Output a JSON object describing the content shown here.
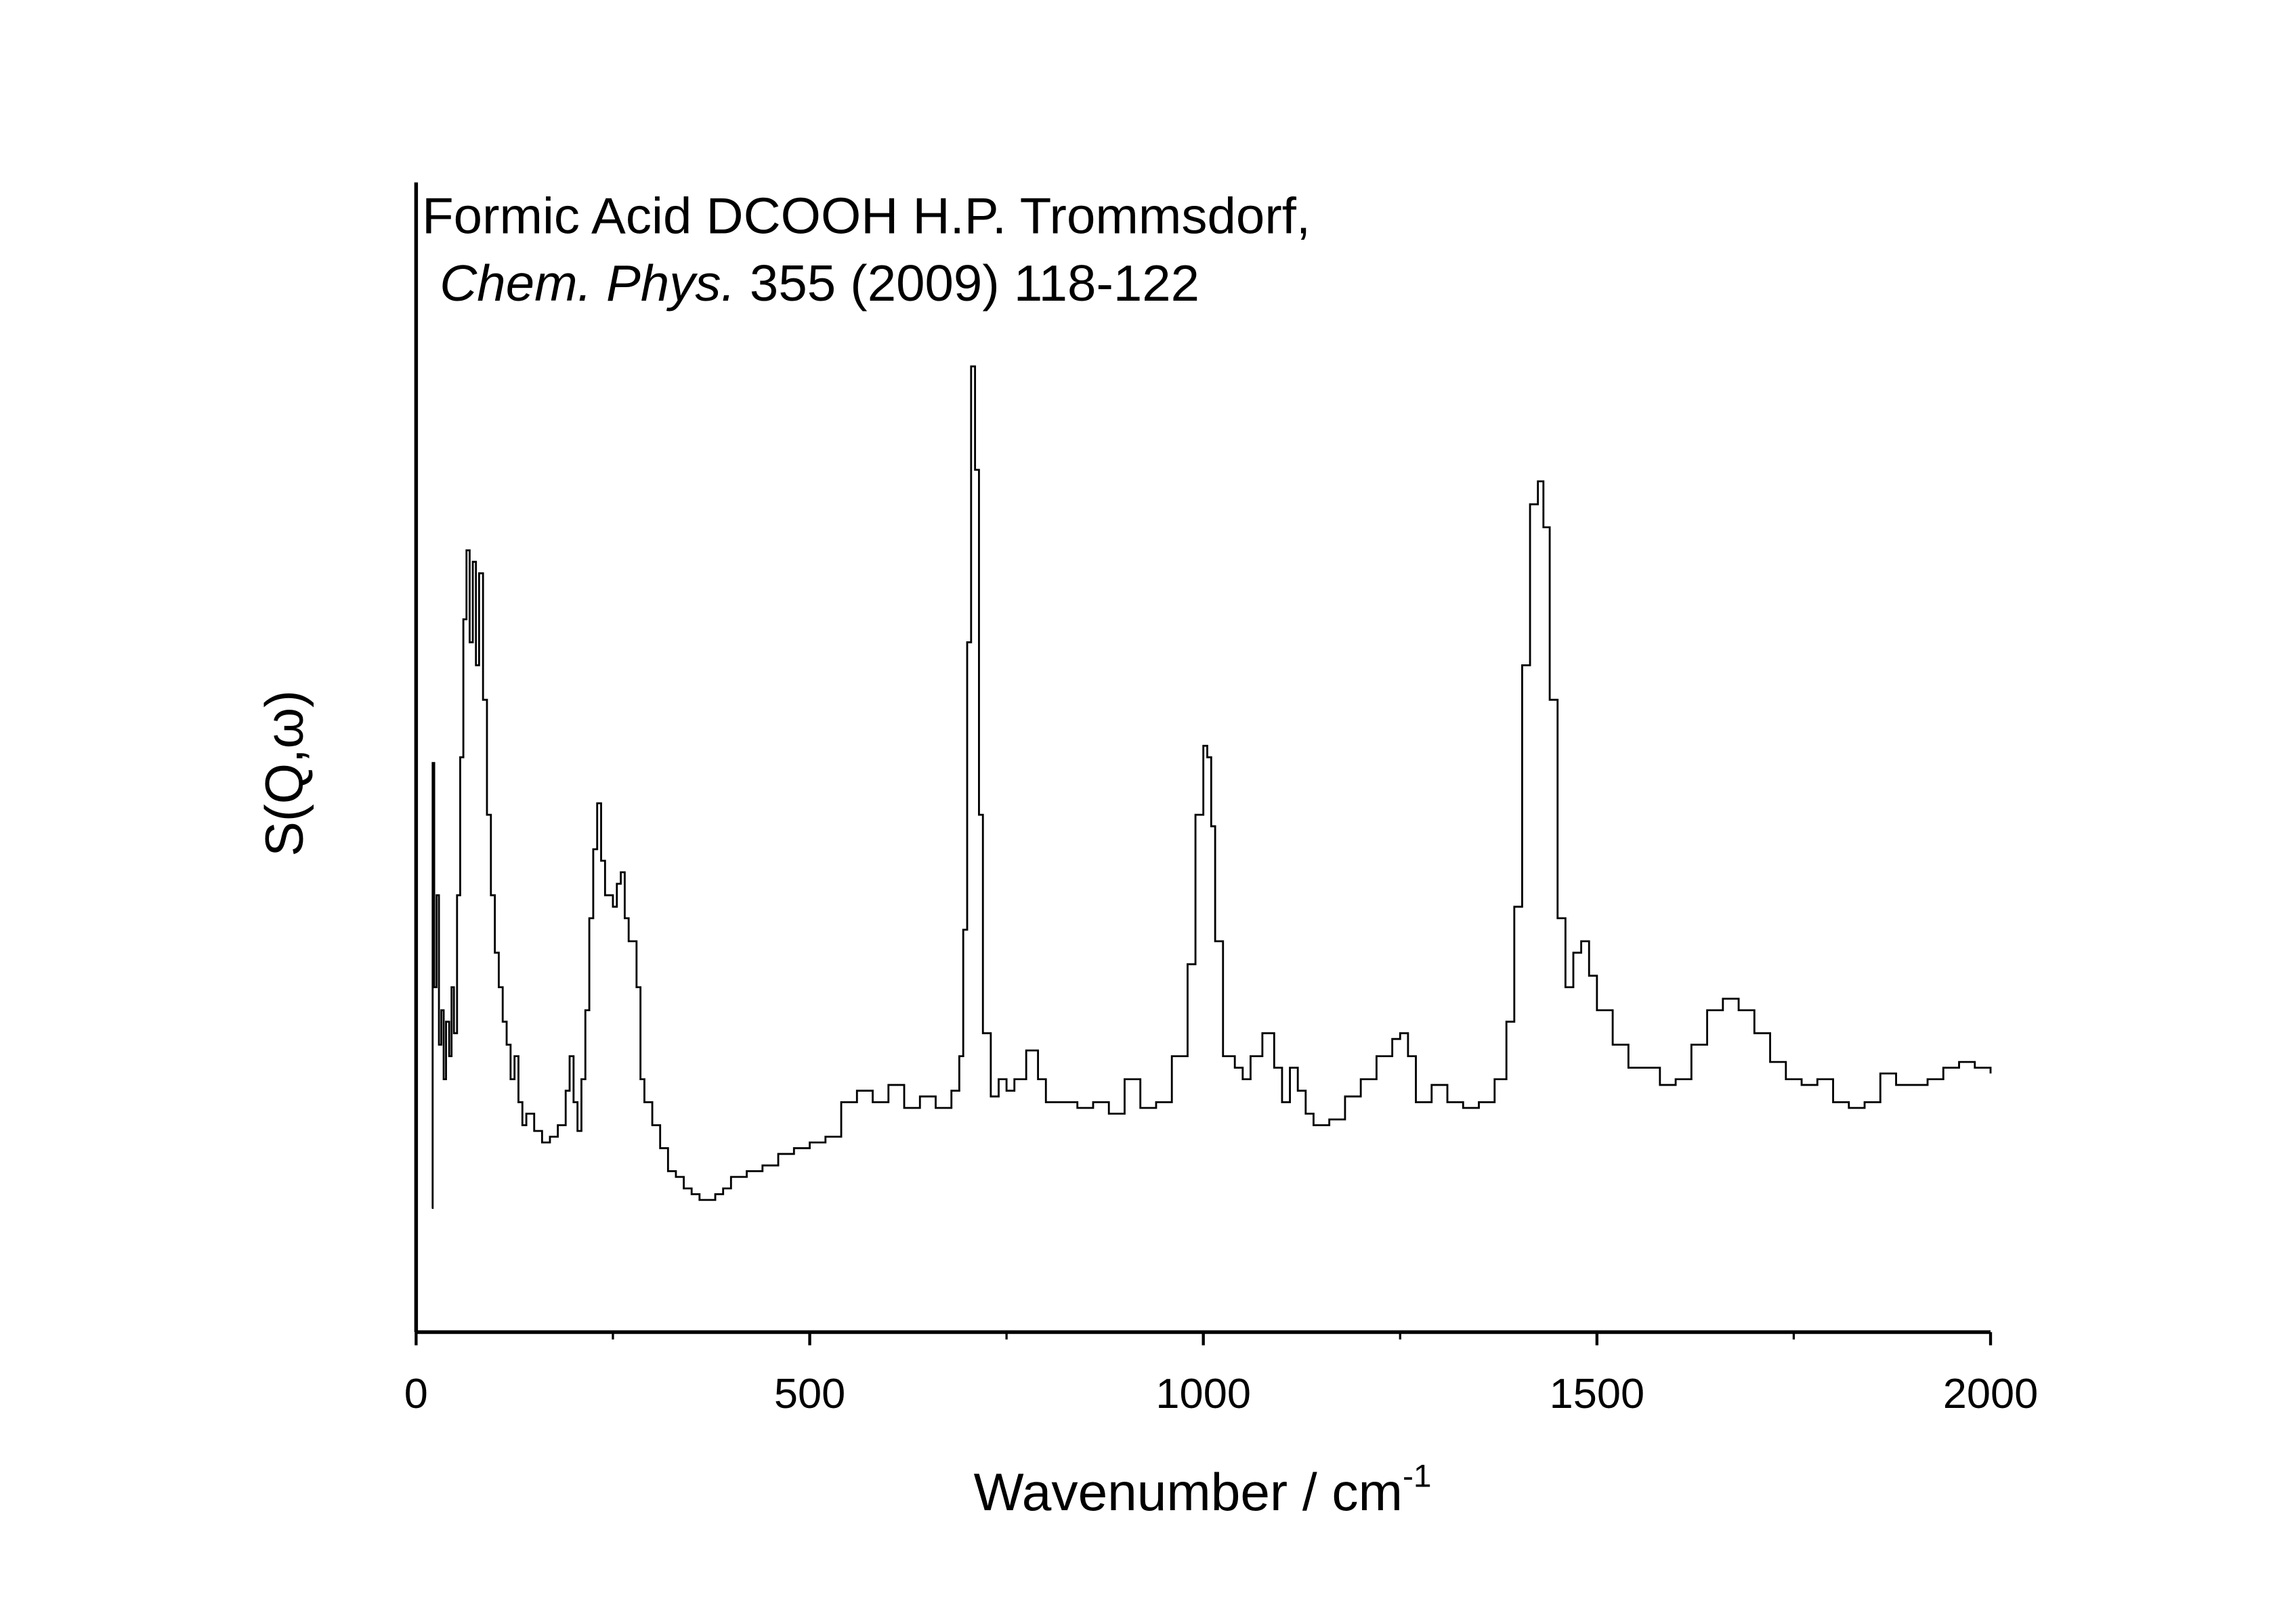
{
  "chart_data": {
    "type": "line",
    "title": "Formic Acid DCOOH H.P. Trommsdorf,",
    "citation": {
      "journal": "Chem. Phys.",
      "reference": "355 (2009) 118-122"
    },
    "xlabel": "Wavenumber / cm",
    "xlabel_superscript": "-1",
    "ylabel": "S(Q,ω)",
    "xlim": [
      0,
      2000
    ],
    "ylim": [
      0,
      100
    ],
    "xticks": [
      0,
      500,
      1000,
      1500,
      2000
    ],
    "xminorticks": [
      250,
      750,
      1250,
      1750
    ],
    "step": true,
    "x": [
      20,
      21,
      23,
      26,
      29,
      32,
      35,
      38,
      42,
      45,
      48,
      52,
      56,
      60,
      64,
      68,
      72,
      76,
      80,
      85,
      90,
      95,
      100,
      105,
      110,
      115,
      120,
      125,
      130,
      135,
      140,
      150,
      160,
      170,
      180,
      190,
      195,
      200,
      205,
      210,
      215,
      220,
      225,
      230,
      235,
      240,
      250,
      255,
      260,
      265,
      270,
      280,
      285,
      290,
      300,
      310,
      320,
      330,
      340,
      350,
      360,
      370,
      380,
      390,
      400,
      420,
      440,
      460,
      480,
      500,
      520,
      535,
      540,
      560,
      580,
      600,
      620,
      640,
      660,
      680,
      690,
      695,
      700,
      705,
      710,
      715,
      720,
      730,
      740,
      750,
      760,
      775,
      790,
      800,
      820,
      840,
      860,
      880,
      900,
      920,
      940,
      960,
      980,
      990,
      1000,
      1005,
      1010,
      1015,
      1025,
      1040,
      1050,
      1060,
      1075,
      1090,
      1100,
      1110,
      1120,
      1130,
      1140,
      1160,
      1180,
      1200,
      1220,
      1240,
      1250,
      1260,
      1270,
      1290,
      1310,
      1330,
      1350,
      1370,
      1385,
      1395,
      1405,
      1415,
      1425,
      1432,
      1440,
      1450,
      1460,
      1470,
      1480,
      1490,
      1500,
      1520,
      1540,
      1560,
      1580,
      1600,
      1620,
      1640,
      1660,
      1680,
      1700,
      1720,
      1740,
      1760,
      1780,
      1800,
      1820,
      1840,
      1860,
      1880,
      1900,
      1920,
      1940,
      1960,
      1980,
      2000
    ],
    "series": [
      {
        "color": "#000000",
        "values": [
          10.8,
          49.5,
          30,
          38,
          25,
          28,
          22,
          27,
          24,
          30,
          26,
          38,
          50,
          62,
          68,
          60,
          67,
          58,
          66,
          55,
          45,
          38,
          33,
          30,
          27,
          25,
          22,
          24,
          20,
          18,
          19,
          17.5,
          16.5,
          17,
          18,
          21,
          24,
          20,
          17.5,
          22,
          28,
          36,
          42,
          46,
          41,
          38,
          37,
          39,
          40,
          36,
          34,
          30,
          22,
          20,
          18,
          16,
          14,
          13.5,
          12.5,
          12,
          11.5,
          11.5,
          12,
          12.5,
          13.5,
          14,
          14.5,
          15.5,
          16,
          16.5,
          17,
          17,
          20,
          21,
          20,
          21.5,
          19.5,
          20.5,
          19.5,
          21,
          24,
          35,
          60,
          84,
          75,
          45,
          26,
          20.5,
          22,
          21,
          22,
          24.5,
          22,
          20,
          20,
          19.5,
          20,
          19,
          22,
          19.5,
          20,
          24,
          32,
          45,
          51,
          50,
          44,
          34,
          24,
          23,
          22,
          24,
          26,
          23,
          20,
          23,
          21,
          19,
          18,
          18.5,
          20.5,
          22,
          24,
          25.5,
          26,
          24,
          20,
          21.5,
          20,
          19.5,
          20,
          22,
          27,
          37,
          58,
          72,
          74,
          70,
          55,
          36,
          30,
          33,
          34,
          31,
          28,
          25,
          23,
          23,
          21.5,
          22,
          25,
          28,
          29,
          28,
          26,
          23.5,
          22,
          21.5,
          22,
          20,
          19.5,
          20,
          22.5,
          21.5,
          21.5,
          22,
          23,
          23.5,
          23,
          22.5
        ]
      }
    ]
  }
}
